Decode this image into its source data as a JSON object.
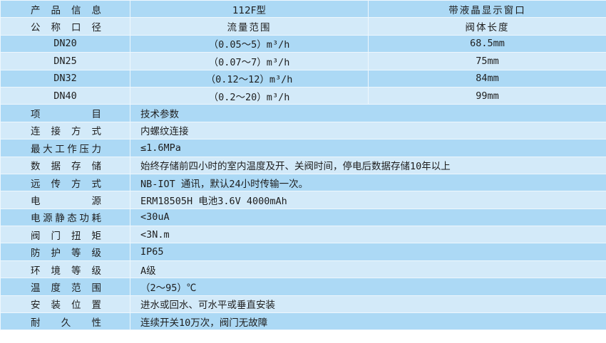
{
  "header": {
    "label": "产品信息",
    "model": "112F型",
    "display": "带液晶显示窗口"
  },
  "size_header": {
    "label": "公称口径",
    "flow": "流量范围",
    "length": "阀体长度"
  },
  "sizes": [
    {
      "dn": "DN20",
      "flow": "（0.05～5）m³/h",
      "length": "68.5mm"
    },
    {
      "dn": "DN25",
      "flow": "（0.07～7）m³/h",
      "length": "75mm"
    },
    {
      "dn": "DN32",
      "flow": "（0.12～12）m³/h",
      "length": "84mm"
    },
    {
      "dn": "DN40",
      "flow": "（0.2～20）m³/h",
      "length": "99mm"
    }
  ],
  "specs": [
    {
      "label": "项目",
      "value": "技术参数"
    },
    {
      "label": "连接方式",
      "value": "内螺纹连接"
    },
    {
      "label": "最大工作压力",
      "value": "≤1.6MPa"
    },
    {
      "label": "数据存储",
      "value": "始终存储前四小时的室内温度及开、关阀时间，停电后数据存储10年以上"
    },
    {
      "label": "远传方式",
      "value": "NB-IOT 通讯，默认24小时传输一次。"
    },
    {
      "label": "电源",
      "value": "ERM18505H 电池3.6V 4000mAh"
    },
    {
      "label": "电源静态功耗",
      "value": "<30uA"
    },
    {
      "label": "阀门扭矩",
      "value": "<3N.m"
    },
    {
      "label": "防护等级",
      "value": "IP65"
    },
    {
      "label": "环境等级",
      "value": "A级"
    },
    {
      "label": "温度范围",
      "value": "（2～95）℃"
    },
    {
      "label": "安装位置",
      "value": "进水或回水、可水平或垂直安装"
    },
    {
      "label": "耐久性",
      "value": "连续开关10万次，阀门无故障"
    }
  ],
  "colors": {
    "row_dark": "#acd9f5",
    "row_light": "#d3eaf9",
    "border": "#eef7fd"
  }
}
